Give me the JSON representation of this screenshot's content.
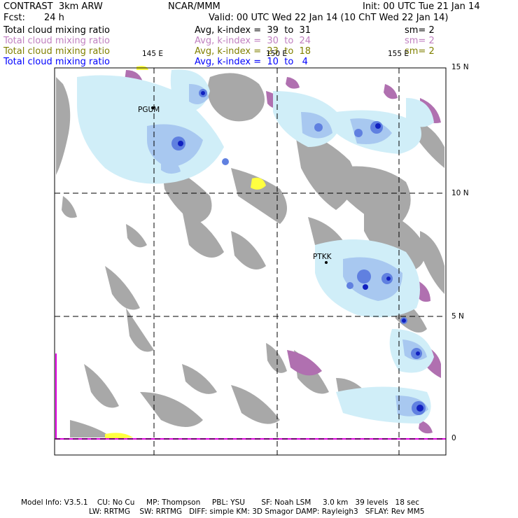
{
  "header": {
    "model": "CONTRAST  3km ARW",
    "org": "NCAR/MMM",
    "init": "Init: 00 UTC Tue 21 Jan 14",
    "fcst_label": "Fcst:",
    "fcst_value": "24 h",
    "valid": "Valid: 00 UTC Wed 22 Jan 14 (10 ChT Wed 22 Jan 14)"
  },
  "legend": [
    {
      "name": "Total cloud mixing ratio",
      "kindex": "Avg, k-index =  39  to  31",
      "sm": "sm= 2",
      "color": "#000000"
    },
    {
      "name": "Total cloud mixing ratio",
      "kindex": "Avg, k-index =  30  to  24",
      "sm": "sm= 2",
      "color": "#c080c0"
    },
    {
      "name": "Total cloud mixing ratio",
      "kindex": "Avg, k-index =  23  to  18",
      "sm": "sm= 2",
      "color": "#808000"
    },
    {
      "name": "Total cloud mixing ratio",
      "kindex": "Avg, k-index =  10  to   4",
      "sm": "",
      "color": "#0000ff"
    }
  ],
  "axes": {
    "lon_labels": [
      "145 E",
      "150 E",
      "155 E"
    ],
    "lat_labels": [
      "15 N",
      "10 N",
      "5 N",
      "0"
    ]
  },
  "stations": [
    "PGUM",
    "PTKK"
  ],
  "footer": {
    "line1": "Model Info: V3.5.1    CU: No Cu     MP: Thompson     PBL: YSU       SF: Noah LSM     3.0 km   39 levels   18 sec",
    "line2": "LW: RRTMG    SW: RRTMG   DIFF: simple KM: 3D Smagor DAMP: Rayleigh3   SFLAY: Rev MM5"
  },
  "colors": {
    "gray": "#a8a8a8",
    "purple": "#b070b0",
    "yellow": "#ffff40",
    "light_blue": "#d0eef8",
    "mid_blue": "#a8c8f0",
    "blue": "#6080e0",
    "dark_blue": "#1020c0",
    "magenta": "#e000e0"
  }
}
